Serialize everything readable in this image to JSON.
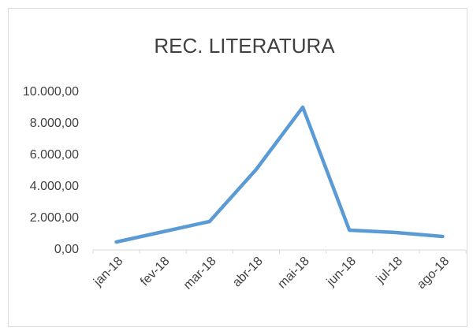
{
  "chart_data": {
    "type": "line",
    "title": "REC. LITERATURA",
    "categories": [
      "jan-18",
      "fev-18",
      "mar-18",
      "abr-18",
      "mai-18",
      "jun-18",
      "jul-18",
      "ago-18"
    ],
    "series": [
      {
        "name": "REC. LITERATURA",
        "color": "#5b9bd5",
        "values": [
          500,
          1150,
          1800,
          5100,
          9050,
          1250,
          1100,
          850
        ]
      }
    ],
    "ylim": [
      0,
      10000
    ],
    "yticks": [
      {
        "value": 0,
        "label": "0,00"
      },
      {
        "value": 2000,
        "label": "2.000,00"
      },
      {
        "value": 4000,
        "label": "4.000,00"
      },
      {
        "value": 6000,
        "label": "6.000,00"
      },
      {
        "value": 8000,
        "label": "8.000,00"
      },
      {
        "value": 10000,
        "label": "10.000,00"
      }
    ],
    "grid": false,
    "legend": false
  }
}
